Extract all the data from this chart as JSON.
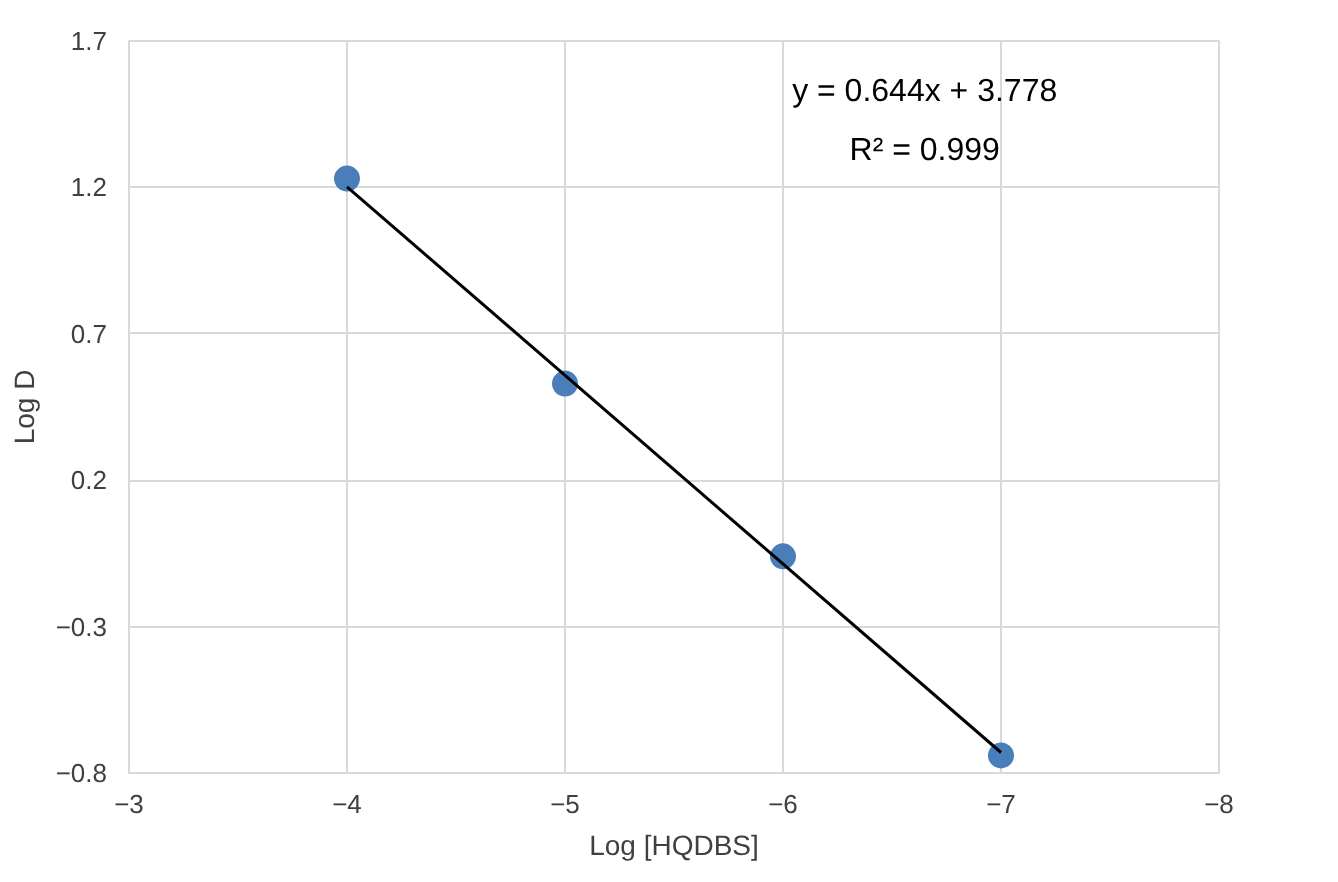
{
  "chart_data": {
    "type": "scatter",
    "xlabel": "Log [HQDBS]",
    "ylabel": "Log D",
    "series": [
      {
        "color": "#4a7ebb",
        "x": [
          -4,
          -5,
          -6,
          -7
        ],
        "values": [
          1.23,
          0.53,
          -0.06,
          -0.74
        ],
        "marker": "circle"
      },
      {
        "type": "line",
        "color": "#000000",
        "x": [
          -4,
          -7
        ],
        "values": [
          1.202,
          -0.73
        ],
        "line_style": "solid",
        "marker": "none"
      }
    ],
    "annotations": [
      "y = 0.644x + 3.778",
      "R² = 0.999"
    ],
    "xlim": [
      -3,
      -8
    ],
    "ylim": [
      -0.8,
      1.7
    ],
    "xticks": [
      -3,
      -4,
      -5,
      -6,
      -7,
      -8
    ],
    "yticks": [
      -0.8,
      -0.3,
      0.2,
      0.7,
      1.2,
      1.7
    ],
    "grid": true
  }
}
